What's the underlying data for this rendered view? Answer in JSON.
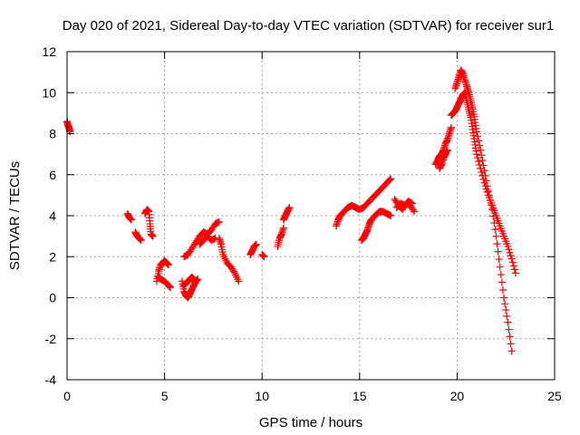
{
  "chart_data": {
    "type": "scatter",
    "title": "Day 020 of 2021, Sidereal Day-to-day VTEC variation (SDTVAR) for receiver sur1",
    "xlabel": "GPS time / hours",
    "ylabel": "SDTVAR / TECUs",
    "xlim": [
      0,
      25
    ],
    "ylim": [
      -4,
      12
    ],
    "xticks": [
      0,
      5,
      10,
      15,
      20,
      25
    ],
    "yticks": [
      -4,
      -2,
      0,
      2,
      4,
      6,
      8,
      10,
      12
    ],
    "grid": true,
    "marker": "+",
    "color": "#ff0000",
    "segments": [
      {
        "x": [
          0.0,
          0.05,
          0.1,
          0.15
        ],
        "y": [
          8.6,
          8.4,
          8.3,
          8.1
        ]
      },
      {
        "x": [
          3.1,
          3.2,
          3.3
        ],
        "y": [
          4.1,
          3.9,
          3.8
        ]
      },
      {
        "x": [
          3.5,
          3.6,
          3.7,
          3.8
        ],
        "y": [
          3.2,
          3.0,
          2.9,
          2.8
        ]
      },
      {
        "x": [
          4.0,
          4.1,
          4.2,
          4.25,
          4.3,
          4.4
        ],
        "y": [
          4.1,
          4.3,
          4.2,
          3.6,
          3.1,
          3.0
        ]
      },
      {
        "x": [
          4.6,
          4.7,
          4.8,
          4.9,
          5.0,
          5.1,
          5.2
        ],
        "y": [
          0.8,
          1.3,
          1.6,
          1.7,
          1.8,
          1.7,
          1.6
        ]
      },
      {
        "x": [
          4.7,
          4.8,
          5.0,
          5.2,
          5.3
        ],
        "y": [
          1.0,
          0.9,
          0.8,
          0.6,
          0.5
        ]
      },
      {
        "x": [
          5.9,
          6.0,
          6.1,
          6.2,
          6.3,
          6.4,
          6.5,
          6.6,
          6.7
        ],
        "y": [
          0.8,
          0.3,
          0.1,
          0.0,
          0.2,
          0.4,
          0.6,
          0.8,
          0.9
        ]
      },
      {
        "x": [
          6.0,
          6.1,
          6.2,
          6.3,
          6.4,
          6.5
        ],
        "y": [
          0.6,
          0.7,
          0.8,
          0.9,
          1.0,
          0.9
        ]
      },
      {
        "x": [
          6.0,
          6.2,
          6.4,
          6.6,
          6.8,
          7.0,
          7.2,
          7.4,
          7.6,
          7.8
        ],
        "y": [
          2.0,
          2.1,
          2.4,
          2.7,
          3.0,
          3.2,
          3.1,
          3.3,
          3.6,
          3.7
        ]
      },
      {
        "x": [
          6.8,
          7.0,
          7.2,
          7.4,
          7.6
        ],
        "y": [
          2.6,
          2.8,
          3.0,
          2.8,
          2.9
        ]
      },
      {
        "x": [
          7.8,
          7.9,
          8.0,
          8.2,
          8.4,
          8.6,
          8.8
        ],
        "y": [
          2.9,
          2.6,
          2.1,
          1.7,
          1.5,
          1.2,
          0.8
        ]
      },
      {
        "x": [
          9.4,
          9.5,
          9.6,
          9.7
        ],
        "y": [
          2.1,
          2.3,
          2.5,
          2.6
        ]
      },
      {
        "x": [
          10.0,
          10.1
        ],
        "y": [
          2.1,
          2.0
        ]
      },
      {
        "x": [
          10.8,
          10.9,
          11.0,
          11.1
        ],
        "y": [
          2.5,
          2.9,
          3.1,
          3.4
        ]
      },
      {
        "x": [
          11.1,
          11.2,
          11.3,
          11.4
        ],
        "y": [
          3.8,
          4.0,
          4.2,
          4.4
        ]
      },
      {
        "x": [
          13.8,
          13.9,
          14.0,
          14.2,
          14.4,
          14.6,
          14.8,
          15.0,
          15.2,
          15.4,
          15.6,
          15.8,
          16.0,
          16.2,
          16.4,
          16.6
        ],
        "y": [
          3.5,
          3.8,
          4.0,
          4.2,
          4.4,
          4.5,
          4.4,
          4.3,
          4.4,
          4.6,
          4.8,
          5.0,
          5.2,
          5.4,
          5.6,
          5.8
        ]
      },
      {
        "x": [
          15.1,
          15.2,
          15.3,
          15.4,
          15.5,
          15.6,
          15.8,
          16.0,
          16.2,
          16.4,
          16.6
        ],
        "y": [
          2.8,
          2.9,
          3.1,
          3.3,
          3.6,
          3.8,
          4.0,
          4.2,
          4.2,
          4.1,
          4.0
        ]
      },
      {
        "x": [
          16.8,
          17.0,
          17.2,
          17.4,
          17.6,
          17.8
        ],
        "y": [
          4.8,
          4.5,
          4.3,
          4.6,
          4.5,
          4.2
        ]
      },
      {
        "x": [
          16.9,
          17.1,
          17.3,
          17.5,
          17.7
        ],
        "y": [
          4.4,
          4.6,
          4.5,
          4.7,
          4.6
        ]
      },
      {
        "x": [
          18.9,
          19.0,
          19.1,
          19.2,
          19.3,
          19.4,
          19.5,
          19.6,
          19.7
        ],
        "y": [
          6.5,
          6.7,
          6.9,
          7.0,
          7.2,
          7.5,
          7.7,
          8.0,
          8.3
        ]
      },
      {
        "x": [
          19.1,
          19.2,
          19.3,
          19.4,
          19.5
        ],
        "y": [
          6.3,
          6.5,
          6.8,
          7.0,
          7.2
        ]
      },
      {
        "x": [
          19.7,
          19.8,
          19.9,
          20.0,
          20.1,
          20.2,
          20.3,
          20.4,
          20.5,
          20.6,
          20.7,
          20.8,
          20.9,
          21.0,
          21.2,
          21.4,
          21.6,
          21.8,
          22.0,
          22.2,
          22.4,
          22.6,
          22.8,
          23.0
        ],
        "y": [
          8.9,
          9.0,
          9.1,
          9.3,
          9.5,
          9.7,
          9.9,
          10.0,
          9.6,
          9.2,
          8.8,
          8.2,
          7.6,
          7.0,
          6.3,
          5.6,
          5.0,
          4.5,
          4.0,
          3.5,
          3.0,
          2.5,
          1.9,
          1.2
        ]
      },
      {
        "x": [
          19.9,
          20.0,
          20.1,
          20.2,
          20.3,
          20.4,
          20.5,
          20.6,
          20.7,
          20.8,
          20.9,
          21.0,
          21.2,
          21.4,
          21.6,
          21.8,
          22.0,
          22.2,
          22.4,
          22.6,
          22.8
        ],
        "y": [
          10.2,
          10.5,
          10.8,
          11.1,
          10.9,
          10.6,
          10.3,
          10.0,
          9.6,
          9.2,
          8.7,
          8.1,
          7.2,
          6.2,
          5.2,
          4.3,
          3.0,
          1.5,
          0.0,
          -1.2,
          -2.6
        ]
      }
    ]
  }
}
